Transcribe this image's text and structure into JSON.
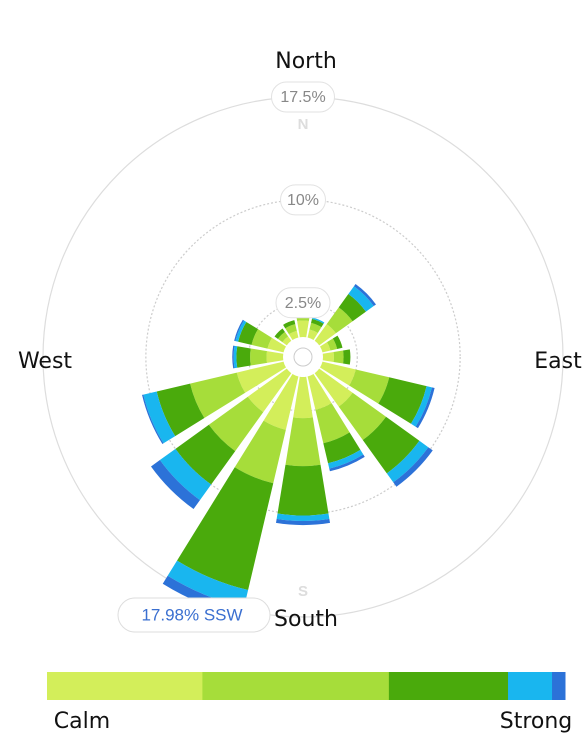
{
  "chart_data": {
    "type": "windrose",
    "categories": [
      null,
      null,
      null,
      null,
      null,
      null,
      null,
      null,
      null,
      null,
      null,
      null,
      null,
      null,
      null,
      null
    ],
    "series": [
      {
        "color": "#d3ee5a",
        "values": [
          1.2,
          0.6,
          1.5,
          0.6,
          0.8,
          2.5,
          3,
          2.5,
          3,
          4,
          3.5,
          3.5,
          1.2,
          1.2,
          0.4,
          0.5
        ]
      },
      {
        "color": "#a6dd3a",
        "values": [
          1.0,
          0.5,
          1.5,
          0.5,
          0.7,
          2.5,
          3,
          2.5,
          3.5,
          4,
          3.5,
          3.5,
          1.2,
          1.2,
          0.4,
          0.5
        ]
      },
      {
        "color": "#4aaa0c",
        "values": [
          0.5,
          0.3,
          1.2,
          0.4,
          0.5,
          2.8,
          3,
          1.5,
          3.6,
          8,
          3,
          2.5,
          1,
          1,
          0.3,
          0.3
        ]
      },
      {
        "color": "#19b6ef",
        "values": [
          0,
          0.1,
          0.7,
          0,
          0,
          0.4,
          0.8,
          0.4,
          0.4,
          1.3,
          1.4,
          1,
          0.2,
          0.2,
          0,
          0
        ]
      },
      {
        "color": "#2c72d8",
        "values": [
          0,
          0,
          0.2,
          0,
          0,
          0.2,
          0.4,
          0.2,
          0.3,
          0.68,
          0.8,
          0.1,
          0.1,
          0.1,
          0,
          0
        ]
      }
    ],
    "rlim": [
      0,
      17.5
    ],
    "rticks": [
      {
        "value": 2.5,
        "label": "2.5%"
      },
      {
        "value": 10,
        "label": "10%"
      },
      {
        "value": 17.5,
        "label": "17.5%"
      }
    ],
    "compass": {
      "north": "North",
      "east": "East",
      "south": "South",
      "west": "West",
      "n": "N",
      "s": "S"
    },
    "annotation": "17.98% SSW",
    "legend": {
      "low": "Calm",
      "high": "Strong"
    }
  }
}
